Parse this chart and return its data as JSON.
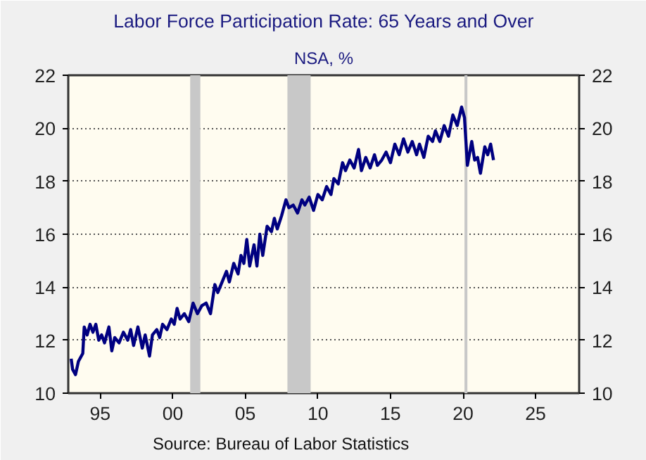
{
  "chart_data": {
    "type": "line",
    "title": "Labor Force Participation Rate: 65 Years and Over",
    "subtitle": "NSA, %",
    "annotations": [
      "Source:  Bureau of Labor Statistics"
    ],
    "x": [
      1993.0,
      1993.1,
      1993.3,
      1993.5,
      1993.8,
      1993.9,
      1994.1,
      1994.3,
      1994.5,
      1994.7,
      1994.9,
      1995.1,
      1995.3,
      1995.6,
      1995.8,
      1996.0,
      1996.3,
      1996.6,
      1996.9,
      1997.1,
      1997.3,
      1997.6,
      1997.9,
      1998.1,
      1998.4,
      1998.6,
      1998.9,
      1999.1,
      1999.3,
      1999.6,
      1999.9,
      2000.1,
      2000.3,
      2000.5,
      2000.8,
      2001.1,
      2001.4,
      2001.7,
      2002.0,
      2002.3,
      2002.6,
      2002.9,
      2003.1,
      2003.4,
      2003.7,
      2003.9,
      2004.2,
      2004.5,
      2004.7,
      2004.9,
      2005.1,
      2005.3,
      2005.6,
      2005.8,
      2006.0,
      2006.2,
      2006.5,
      2006.8,
      2007.0,
      2007.2,
      2007.5,
      2007.8,
      2008.0,
      2008.3,
      2008.6,
      2008.9,
      2009.1,
      2009.4,
      2009.7,
      2010.0,
      2010.3,
      2010.6,
      2010.9,
      2011.1,
      2011.4,
      2011.7,
      2011.9,
      2012.2,
      2012.5,
      2012.8,
      2013.0,
      2013.3,
      2013.6,
      2013.9,
      2014.1,
      2014.4,
      2014.7,
      2015.0,
      2015.3,
      2015.6,
      2015.9,
      2016.2,
      2016.5,
      2016.8,
      2017.0,
      2017.3,
      2017.6,
      2017.9,
      2018.1,
      2018.4,
      2018.7,
      2019.0,
      2019.3,
      2019.6,
      2019.9,
      2020.1,
      2020.3,
      2020.6,
      2020.8,
      2021.0,
      2021.2,
      2021.5,
      2021.7,
      2021.9,
      2022.1
    ],
    "series": [
      {
        "color": "#000080",
        "values": [
          11.3,
          10.9,
          10.7,
          11.2,
          11.5,
          12.5,
          12.2,
          12.6,
          12.3,
          12.6,
          12.0,
          12.2,
          11.9,
          12.5,
          11.6,
          12.1,
          11.9,
          12.3,
          12.0,
          12.4,
          11.8,
          12.5,
          11.7,
          12.2,
          11.4,
          12.2,
          12.4,
          12.1,
          12.6,
          12.4,
          12.8,
          12.6,
          13.2,
          12.8,
          13.0,
          12.7,
          13.4,
          13.0,
          13.3,
          13.4,
          13.0,
          14.1,
          13.8,
          14.2,
          14.6,
          14.2,
          14.9,
          14.5,
          15.2,
          14.9,
          15.8,
          14.8,
          15.6,
          14.8,
          16.0,
          15.2,
          16.3,
          16.1,
          16.6,
          16.2,
          16.7,
          17.3,
          17.0,
          17.1,
          16.8,
          17.3,
          17.1,
          17.4,
          16.9,
          17.5,
          17.3,
          17.8,
          17.5,
          18.1,
          17.9,
          18.7,
          18.4,
          18.8,
          18.5,
          19.2,
          18.4,
          18.9,
          18.5,
          19.0,
          18.6,
          18.8,
          19.1,
          18.7,
          19.4,
          19.0,
          19.6,
          19.1,
          19.5,
          19.0,
          19.4,
          18.9,
          19.7,
          19.5,
          19.9,
          19.5,
          20.1,
          19.7,
          20.5,
          20.1,
          20.8,
          20.4,
          18.6,
          19.5,
          18.8,
          18.9,
          18.3,
          19.3,
          19.0,
          19.4,
          18.8
        ]
      }
    ],
    "xlim": [
      1992.8,
      2028.0
    ],
    "xticks": [
      {
        "value": 1995,
        "label": "95"
      },
      {
        "value": 2000,
        "label": "00"
      },
      {
        "value": 2005,
        "label": "05"
      },
      {
        "value": 2010,
        "label": "10"
      },
      {
        "value": 2015,
        "label": "15"
      },
      {
        "value": 2020,
        "label": "20"
      },
      {
        "value": 2025,
        "label": "25"
      }
    ],
    "ylim": [
      10,
      22
    ],
    "yticks": [
      10,
      12,
      14,
      16,
      18,
      20,
      22
    ],
    "y2lim": [
      10,
      22
    ],
    "y2ticks": [
      10,
      12,
      14,
      16,
      18,
      20,
      22
    ],
    "bands": [
      {
        "axis": "x",
        "from": 2001.2,
        "to": 2001.9,
        "label": null,
        "color": "#c8c8c8"
      },
      {
        "axis": "x",
        "from": 2007.9,
        "to": 2009.5,
        "label": null,
        "color": "#c8c8c8"
      },
      {
        "axis": "x",
        "from": 2020.1,
        "to": 2020.3,
        "label": null,
        "color": "#c8c8c8"
      }
    ],
    "grid": "y",
    "line_style": "solid",
    "marker": "none"
  }
}
